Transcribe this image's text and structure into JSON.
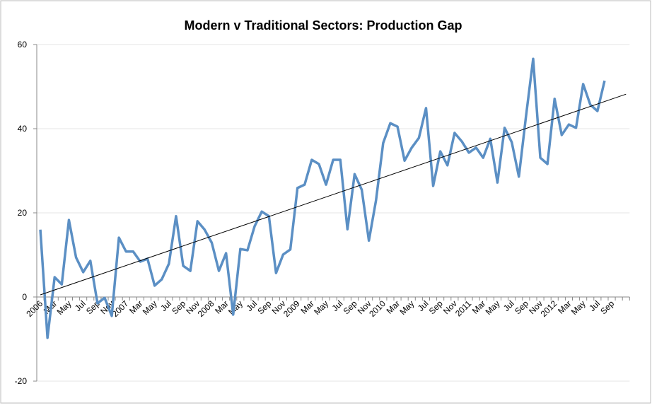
{
  "chart_data": {
    "type": "line",
    "title": "Modern v Traditional Sectors: Production Gap",
    "categories": [
      "2006",
      null,
      "Mar",
      null,
      "May",
      null,
      "Jul",
      null,
      "Sep",
      null,
      "Nov",
      null,
      "2007",
      null,
      "Mar",
      null,
      "May",
      null,
      "Jul",
      null,
      "Sep",
      null,
      "Nov",
      null,
      "2008",
      null,
      "Mar",
      null,
      "May",
      null,
      "Jul",
      null,
      "Sep",
      null,
      "Nov",
      null,
      "2009",
      null,
      "Mar",
      null,
      "May",
      null,
      "Jul",
      null,
      "Sep",
      null,
      "Nov",
      null,
      "2010",
      null,
      "Mar",
      null,
      "May",
      null,
      "Jul",
      null,
      "Sep",
      null,
      "Nov",
      null,
      "2011",
      null,
      "Mar",
      null,
      "May",
      null,
      "Jul",
      null,
      "Sep",
      null,
      "Nov",
      null,
      "2012",
      null,
      "Mar",
      null,
      "May",
      null,
      "Jul",
      null,
      "Sep",
      null,
      null
    ],
    "values": [
      16,
      -9.7,
      4.7,
      3,
      18.3,
      9.4,
      5.9,
      8.6,
      -1.5,
      -0.2,
      -4.5,
      14.1,
      10.8,
      10.8,
      8.4,
      9.1,
      2.7,
      4.2,
      7.9,
      19.2,
      7.4,
      6.2,
      18,
      16,
      12.9,
      6.2,
      10.4,
      -4.2,
      11.4,
      11.1,
      16.8,
      20.3,
      19.2,
      5.7,
      10.1,
      11.3,
      25.9,
      26.7,
      32.6,
      31.6,
      26.7,
      32.6,
      32.6,
      16.1,
      29.2,
      25.5,
      13.4,
      23,
      36.6,
      41.3,
      40.5,
      32.4,
      35.5,
      37.8,
      44.9,
      26.4,
      34.6,
      31.3,
      39,
      37,
      34.3,
      35.5,
      33.1,
      37.6,
      27.2,
      40.2,
      36.8,
      28.6,
      43,
      56.6,
      33.1,
      31.6,
      47.1,
      38.5,
      41,
      40.2,
      50.6,
      45.7,
      44.2,
      51.4,
      null,
      null,
      null
    ],
    "color": "#5b8fc4",
    "trendline": {
      "start": 0.5,
      "end": 48.2,
      "color": "#000000"
    },
    "ylim": [
      -20,
      60
    ],
    "yticks": [
      -20,
      0,
      20,
      40,
      60
    ],
    "grid": true
  }
}
